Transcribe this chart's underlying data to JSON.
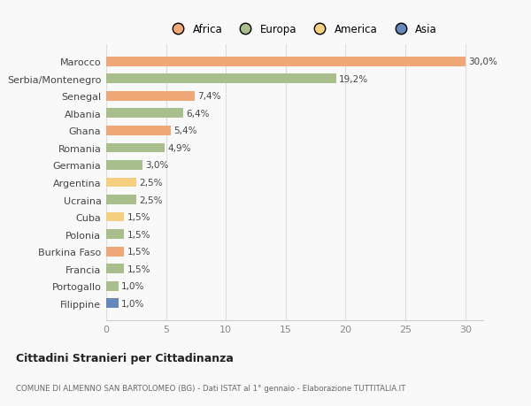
{
  "countries": [
    "Marocco",
    "Serbia/Montenegro",
    "Senegal",
    "Albania",
    "Ghana",
    "Romania",
    "Germania",
    "Argentina",
    "Ucraina",
    "Cuba",
    "Polonia",
    "Burkina Faso",
    "Francia",
    "Portogallo",
    "Filippine"
  ],
  "values": [
    30.0,
    19.2,
    7.4,
    6.4,
    5.4,
    4.9,
    3.0,
    2.5,
    2.5,
    1.5,
    1.5,
    1.5,
    1.5,
    1.0,
    1.0
  ],
  "labels": [
    "30,0%",
    "19,2%",
    "7,4%",
    "6,4%",
    "5,4%",
    "4,9%",
    "3,0%",
    "2,5%",
    "2,5%",
    "1,5%",
    "1,5%",
    "1,5%",
    "1,5%",
    "1,0%",
    "1,0%"
  ],
  "colors": [
    "#F0A878",
    "#A8BE8C",
    "#F0A878",
    "#A8BE8C",
    "#F0A878",
    "#A8BE8C",
    "#A8BE8C",
    "#F5D080",
    "#A8BE8C",
    "#F5D080",
    "#A8BE8C",
    "#F0A878",
    "#A8BE8C",
    "#A8BE8C",
    "#6688BB"
  ],
  "legend_labels": [
    "Africa",
    "Europa",
    "America",
    "Asia"
  ],
  "legend_colors": [
    "#F0A878",
    "#A8BE8C",
    "#F5D080",
    "#6688BB"
  ],
  "title": "Cittadini Stranieri per Cittadinanza",
  "subtitle": "COMUNE DI ALMENNO SAN BARTOLOMEO (BG) - Dati ISTAT al 1° gennaio - Elaborazione TUTTITALIA.IT",
  "xlim": [
    0,
    31.5
  ],
  "xticks": [
    0,
    5,
    10,
    15,
    20,
    25,
    30
  ],
  "bg_color": "#f9f9f9",
  "grid_color": "#dddddd",
  "bar_height": 0.55
}
